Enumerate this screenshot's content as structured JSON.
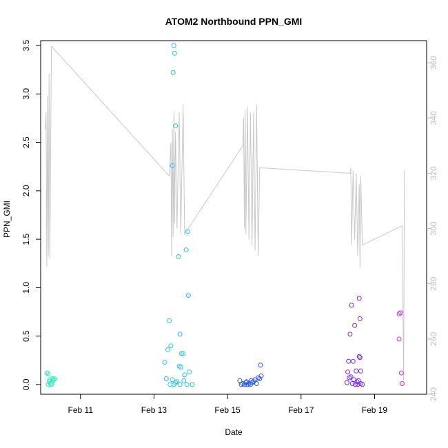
{
  "chart_data": {
    "type": "scatter",
    "title": "ATOM2 Northbound PPN_GMI",
    "xlabel": "Date",
    "ylabel": "PPN_GMI",
    "x_axis": {
      "kind": "date",
      "range": [
        "2013-02-09T22:00",
        "2013-02-20T10:00"
      ],
      "ticks": [
        "2013-02-11",
        "2013-02-13",
        "2013-02-15",
        "2013-02-17",
        "2013-02-19"
      ],
      "tick_labels": [
        "Feb 11",
        "Feb 13",
        "Feb 15",
        "Feb 17",
        "Feb 19"
      ]
    },
    "y_left": {
      "range": [
        -0.1,
        3.55
      ],
      "ticks": [
        0.0,
        0.5,
        1.0,
        1.5,
        2.0,
        2.5,
        3.0,
        3.5
      ],
      "tick_labels": [
        "0.0",
        "0.5",
        "1.0",
        "1.5",
        "2.0",
        "2.5",
        "3.0",
        "3.5"
      ]
    },
    "y_right": {
      "range": [
        240,
        368
      ],
      "ticks": [
        240,
        260,
        280,
        300,
        320,
        340,
        360
      ],
      "tick_labels": [
        "240",
        "260",
        "280",
        "300",
        "320",
        "340",
        "360"
      ],
      "color": "#bdbdbd"
    },
    "grid": false,
    "legend": "none",
    "series": [
      {
        "color": "#22f0b8",
        "marker": "open-circle",
        "points": [
          [
            "2013-02-10T02:00",
            0.12
          ],
          [
            "2013-02-10T03:00",
            0.11
          ],
          [
            "2013-02-10T04:00",
            0.05
          ],
          [
            "2013-02-10T03:30",
            0.03
          ],
          [
            "2013-02-10T04:30",
            0.01
          ],
          [
            "2013-02-10T05:00",
            0.0
          ],
          [
            "2013-02-10T05:30",
            0.06
          ],
          [
            "2013-02-10T06:00",
            0.04
          ],
          [
            "2013-02-10T06:30",
            0.05
          ],
          [
            "2013-02-10T07:00",
            0.06
          ],
          [
            "2013-02-10T03:00",
            0.0
          ]
        ]
      },
      {
        "color": "#22c4f0",
        "marker": "open-circle",
        "points": [
          [
            "2013-02-13T13:00",
            3.5
          ],
          [
            "2013-02-13T13:30",
            3.42
          ],
          [
            "2013-02-13T12:30",
            3.22
          ],
          [
            "2013-02-13T14:00",
            2.67
          ],
          [
            "2013-02-13T12:00",
            2.26
          ],
          [
            "2013-02-13T22:00",
            1.58
          ],
          [
            "2013-02-13T21:00",
            1.39
          ],
          [
            "2013-02-13T16:00",
            1.32
          ],
          [
            "2013-02-13T22:30",
            0.92
          ],
          [
            "2013-02-13T10:00",
            0.66
          ],
          [
            "2013-02-13T17:00",
            0.52
          ],
          [
            "2013-02-13T11:00",
            0.4
          ],
          [
            "2013-02-13T09:00",
            0.36
          ],
          [
            "2013-02-13T18:00",
            0.32
          ],
          [
            "2013-02-13T19:00",
            0.32
          ],
          [
            "2013-02-13T07:00",
            0.23
          ],
          [
            "2013-02-13T16:30",
            0.19
          ],
          [
            "2013-02-13T17:30",
            0.18
          ],
          [
            "2013-02-13T23:00",
            0.13
          ],
          [
            "2013-02-13T20:00",
            0.1
          ],
          [
            "2013-02-13T08:00",
            0.06
          ],
          [
            "2013-02-13T12:00",
            0.05
          ],
          [
            "2013-02-13T15:00",
            0.03
          ],
          [
            "2013-02-13T19:30",
            0.04
          ],
          [
            "2013-02-13T10:30",
            0.0
          ],
          [
            "2013-02-13T13:00",
            0.0
          ],
          [
            "2013-02-13T17:00",
            0.0
          ],
          [
            "2013-02-13T21:30",
            0.0
          ],
          [
            "2013-02-14T01:00",
            0.0
          ],
          [
            "2013-02-13T14:00",
            0.02
          ]
        ]
      },
      {
        "color": "#2255f0",
        "marker": "open-circle",
        "points": [
          [
            "2013-02-15T08:00",
            0.04
          ],
          [
            "2013-02-15T09:00",
            0.0
          ],
          [
            "2013-02-15T10:00",
            0.01
          ],
          [
            "2013-02-15T11:00",
            0.0
          ],
          [
            "2013-02-15T12:00",
            0.02
          ],
          [
            "2013-02-15T13:00",
            0.0
          ],
          [
            "2013-02-15T14:00",
            0.01
          ],
          [
            "2013-02-15T15:00",
            0.0
          ],
          [
            "2013-02-15T16:00",
            0.02
          ],
          [
            "2013-02-15T17:00",
            0.03
          ],
          [
            "2013-02-15T18:00",
            0.05
          ],
          [
            "2013-02-15T19:00",
            0.01
          ],
          [
            "2013-02-15T20:00",
            0.07
          ],
          [
            "2013-02-15T21:00",
            0.06
          ],
          [
            "2013-02-15T22:00",
            0.09
          ],
          [
            "2013-02-15T21:30",
            0.2
          ],
          [
            "2013-02-15T12:30",
            0.03
          ],
          [
            "2013-02-15T15:30",
            0.04
          ]
        ]
      },
      {
        "color": "#7a22f0",
        "marker": "open-circle",
        "points": [
          [
            "2013-02-18T14:00",
            0.89
          ],
          [
            "2013-02-18T09:00",
            0.82
          ],
          [
            "2013-02-18T14:30",
            0.68
          ],
          [
            "2013-02-18T11:00",
            0.61
          ],
          [
            "2013-02-18T08:00",
            0.52
          ],
          [
            "2013-02-18T14:00",
            0.29
          ],
          [
            "2013-02-18T14:30",
            0.28
          ],
          [
            "2013-02-18T07:00",
            0.24
          ],
          [
            "2013-02-18T10:00",
            0.24
          ],
          [
            "2013-02-18T06:30",
            0.13
          ],
          [
            "2013-02-18T12:00",
            0.14
          ],
          [
            "2013-02-18T15:00",
            0.14
          ],
          [
            "2013-02-18T07:30",
            0.07
          ],
          [
            "2013-02-18T08:30",
            0.08
          ],
          [
            "2013-02-18T10:30",
            0.05
          ],
          [
            "2013-02-18T12:30",
            0.03
          ],
          [
            "2013-02-18T13:30",
            0.04
          ],
          [
            "2013-02-18T06:00",
            0.02
          ],
          [
            "2013-02-18T09:30",
            0.01
          ],
          [
            "2013-02-18T11:30",
            0.0
          ],
          [
            "2013-02-18T13:00",
            0.0
          ],
          [
            "2013-02-18T15:00",
            0.01
          ],
          [
            "2013-02-18T16:00",
            0.0
          ]
        ]
      },
      {
        "color": "#d622f0",
        "marker": "open-circle",
        "points": [
          [
            "2013-02-19T16:00",
            0.73
          ],
          [
            "2013-02-19T17:00",
            0.74
          ],
          [
            "2013-02-19T16:00",
            0.47
          ],
          [
            "2013-02-19T17:30",
            0.12
          ],
          [
            "2013-02-19T18:00",
            0.01
          ]
        ]
      }
    ],
    "secondary_line": {
      "axis": "right",
      "color": "#c8c8c8",
      "points": [
        [
          "2013-02-10T01:00",
          336
        ],
        [
          "2013-02-10T01:30",
          342
        ],
        [
          "2013-02-10T02:00",
          286
        ],
        [
          "2013-02-10T02:30",
          348
        ],
        [
          "2013-02-10T03:00",
          290
        ],
        [
          "2013-02-10T03:30",
          356
        ],
        [
          "2013-02-10T04:00",
          289
        ],
        [
          "2013-02-10T05:00",
          366
        ],
        [
          "2013-02-13T10:00",
          319
        ],
        [
          "2013-02-13T11:00",
          331
        ],
        [
          "2013-02-13T11:30",
          290
        ],
        [
          "2013-02-13T12:00",
          336
        ],
        [
          "2013-02-13T12:30",
          297
        ],
        [
          "2013-02-13T13:00",
          342
        ],
        [
          "2013-02-13T13:30",
          302
        ],
        [
          "2013-02-13T14:00",
          335
        ],
        [
          "2013-02-13T15:00",
          300
        ],
        [
          "2013-02-13T16:30",
          342
        ],
        [
          "2013-02-13T17:30",
          298
        ],
        [
          "2013-02-13T19:00",
          345
        ],
        [
          "2013-02-13T20:00",
          298
        ],
        [
          "2013-02-15T10:00",
          330
        ],
        [
          "2013-02-15T10:30",
          340
        ],
        [
          "2013-02-15T11:00",
          300
        ],
        [
          "2013-02-15T11:30",
          343
        ],
        [
          "2013-02-15T12:00",
          298
        ],
        [
          "2013-02-15T13:00",
          344
        ],
        [
          "2013-02-15T14:00",
          296
        ],
        [
          "2013-02-15T15:00",
          342
        ],
        [
          "2013-02-15T16:00",
          294
        ],
        [
          "2013-02-15T17:00",
          342
        ],
        [
          "2013-02-15T18:00",
          292
        ],
        [
          "2013-02-15T19:00",
          345
        ],
        [
          "2013-02-15T20:00",
          290
        ],
        [
          "2013-02-15T21:00",
          322
        ],
        [
          "2013-02-18T08:00",
          320
        ],
        [
          "2013-02-18T08:30",
          322
        ],
        [
          "2013-02-18T09:00",
          294
        ],
        [
          "2013-02-18T10:00",
          321
        ],
        [
          "2013-02-18T11:00",
          296
        ],
        [
          "2013-02-18T12:00",
          320
        ],
        [
          "2013-02-18T13:00",
          290
        ],
        [
          "2013-02-18T14:00",
          316
        ],
        [
          "2013-02-18T14:30",
          286
        ],
        [
          "2013-02-18T15:00",
          319
        ],
        [
          "2013-02-18T16:00",
          294
        ],
        [
          "2013-02-19T18:00",
          301
        ],
        [
          "2013-02-19T19:00",
          245
        ],
        [
          "2013-02-19T19:30",
          321
        ]
      ]
    }
  }
}
